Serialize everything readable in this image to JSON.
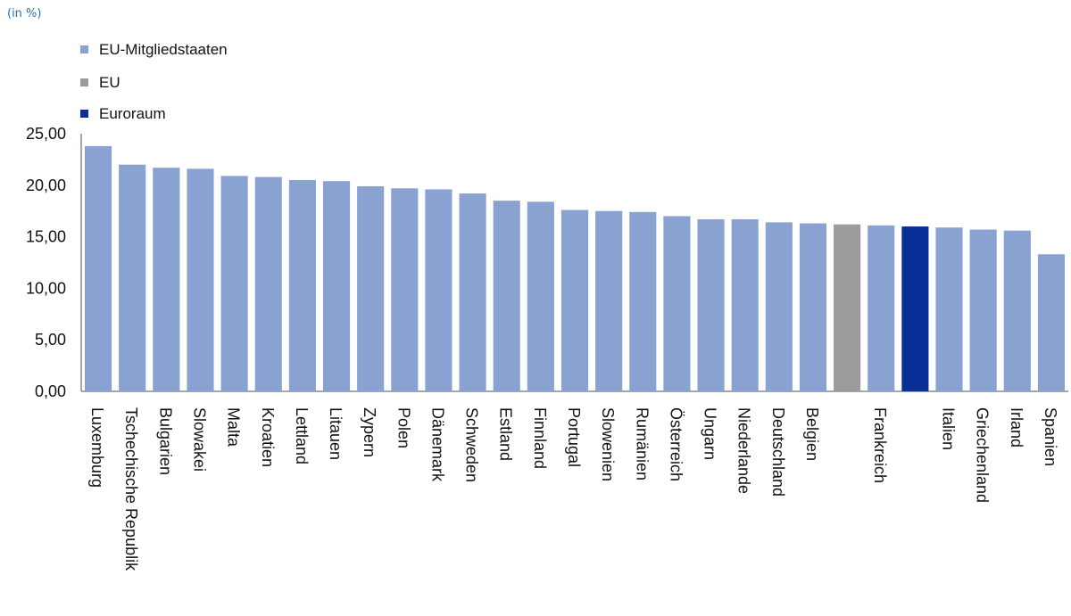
{
  "unit_note": "(in %)",
  "colors": {
    "member": "#8aa2d2",
    "eu": "#9b9b9b",
    "euro": "#0a2f96",
    "axis": "#888888"
  },
  "legend": {
    "placement": "top-left",
    "items": [
      {
        "label": "EU-Mitgliedstaaten",
        "color": "#8aa2d2"
      },
      {
        "label": "EU",
        "color": "#9b9b9b"
      },
      {
        "label": "Euroraum",
        "color": "#0a2f96"
      }
    ]
  },
  "chart_data": {
    "type": "bar",
    "title": "",
    "xlabel": "",
    "ylabel": "",
    "ylim": [
      0,
      25
    ],
    "yticks": [
      "0,00",
      "5,00",
      "10,00",
      "15,00",
      "20,00",
      "25,00"
    ],
    "grid": false,
    "categories": [
      "Luxemburg",
      "Tschechische Republik",
      "Bulgarien",
      "Slowakei",
      "Malta",
      "Kroatien",
      "Lettland",
      "Litauen",
      "Zypern",
      "Polen",
      "Dänemark",
      "Schweden",
      "Estland",
      "Finnland",
      "Portugal",
      "Slowenien",
      "Rumänien",
      "Österreich",
      "Ungarn",
      "Niederlande",
      "Deutschland",
      "Belgien",
      "",
      "Frankreich",
      "",
      "Italien",
      "Griechenland",
      "Irland",
      "Spanien"
    ],
    "values": [
      23.8,
      22.0,
      21.7,
      21.6,
      20.9,
      20.8,
      20.5,
      20.4,
      19.9,
      19.7,
      19.6,
      19.2,
      18.5,
      18.4,
      17.6,
      17.5,
      17.4,
      17.0,
      16.7,
      16.7,
      16.4,
      16.3,
      16.2,
      16.1,
      16.0,
      15.9,
      15.7,
      15.6,
      13.3
    ],
    "groups": [
      "member",
      "member",
      "member",
      "member",
      "member",
      "member",
      "member",
      "member",
      "member",
      "member",
      "member",
      "member",
      "member",
      "member",
      "member",
      "member",
      "member",
      "member",
      "member",
      "member",
      "member",
      "member",
      "eu",
      "member",
      "euro",
      "member",
      "member",
      "member",
      "member"
    ]
  }
}
